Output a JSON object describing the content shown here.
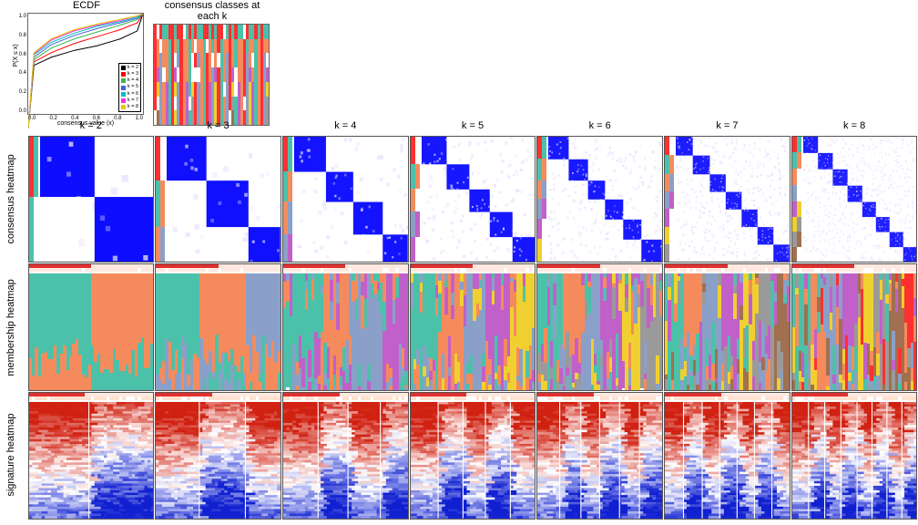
{
  "top": {
    "ecdf": {
      "title": "ECDF",
      "ylabel": "P(X ≤ x)",
      "xlabel": "consensus value (x)",
      "xticks": [
        "0.0",
        "0.2",
        "0.4",
        "0.6",
        "0.8",
        "1.0"
      ],
      "yticks": [
        "0.0",
        "0.2",
        "0.4",
        "0.6",
        "0.8",
        "1.0"
      ],
      "lines": [
        {
          "color": "#000000",
          "pts": [
            [
              0,
              0.0
            ],
            [
              0.05,
              0.55
            ],
            [
              0.2,
              0.62
            ],
            [
              0.4,
              0.68
            ],
            [
              0.6,
              0.72
            ],
            [
              0.8,
              0.78
            ],
            [
              0.95,
              0.85
            ],
            [
              1,
              1
            ]
          ]
        },
        {
          "color": "#ff0000",
          "pts": [
            [
              0,
              0.0
            ],
            [
              0.05,
              0.58
            ],
            [
              0.2,
              0.66
            ],
            [
              0.4,
              0.74
            ],
            [
              0.6,
              0.8
            ],
            [
              0.8,
              0.86
            ],
            [
              0.95,
              0.92
            ],
            [
              1,
              1
            ]
          ]
        },
        {
          "color": "#3cb44b",
          "pts": [
            [
              0,
              0.0
            ],
            [
              0.05,
              0.6
            ],
            [
              0.2,
              0.7
            ],
            [
              0.4,
              0.78
            ],
            [
              0.6,
              0.84
            ],
            [
              0.8,
              0.9
            ],
            [
              0.95,
              0.95
            ],
            [
              1,
              1
            ]
          ]
        },
        {
          "color": "#4363d8",
          "pts": [
            [
              0,
              0.0
            ],
            [
              0.05,
              0.62
            ],
            [
              0.2,
              0.73
            ],
            [
              0.4,
              0.81
            ],
            [
              0.6,
              0.87
            ],
            [
              0.8,
              0.92
            ],
            [
              0.95,
              0.96
            ],
            [
              1,
              1
            ]
          ]
        },
        {
          "color": "#00c0c0",
          "pts": [
            [
              0,
              0.0
            ],
            [
              0.05,
              0.64
            ],
            [
              0.2,
              0.75
            ],
            [
              0.4,
              0.83
            ],
            [
              0.6,
              0.89
            ],
            [
              0.8,
              0.93
            ],
            [
              0.95,
              0.97
            ],
            [
              1,
              1
            ]
          ]
        },
        {
          "color": "#f032e6",
          "pts": [
            [
              0,
              0.0
            ],
            [
              0.05,
              0.65
            ],
            [
              0.2,
              0.77
            ],
            [
              0.4,
              0.85
            ],
            [
              0.6,
              0.9
            ],
            [
              0.8,
              0.94
            ],
            [
              0.95,
              0.98
            ],
            [
              1,
              1
            ]
          ]
        },
        {
          "color": "#e6c700",
          "pts": [
            [
              0,
              0.0
            ],
            [
              0.05,
              0.66
            ],
            [
              0.2,
              0.78
            ],
            [
              0.4,
              0.86
            ],
            [
              0.6,
              0.91
            ],
            [
              0.8,
              0.95
            ],
            [
              0.95,
              0.98
            ],
            [
              1,
              1
            ]
          ]
        }
      ],
      "legend": [
        {
          "color": "#000000",
          "label": "k = 2"
        },
        {
          "color": "#ff0000",
          "label": "k = 3"
        },
        {
          "color": "#3cb44b",
          "label": "k = 4"
        },
        {
          "color": "#4363d8",
          "label": "k = 5"
        },
        {
          "color": "#00c0c0",
          "label": "k = 6"
        },
        {
          "color": "#f032e6",
          "label": "k = 7"
        },
        {
          "color": "#e6c700",
          "label": "k = 8"
        }
      ]
    },
    "cc": {
      "title": "consensus classes at each k",
      "palette_by_k": {
        "2": [
          "#ff3030",
          "#4cc1aa"
        ],
        "3": [
          "#ff3030",
          "#4cc1aa",
          "#f58b5c"
        ],
        "4": [
          "#ff3030",
          "#4cc1aa",
          "#f58b5c",
          "#8aa0c8"
        ],
        "5": [
          "#ff3030",
          "#4cc1aa",
          "#f58b5c",
          "#8aa0c8",
          "#c160c9"
        ],
        "6": [
          "#ff3030",
          "#4cc1aa",
          "#f58b5c",
          "#8aa0c8",
          "#c160c9",
          "#f0d030"
        ],
        "7": [
          "#ff3030",
          "#4cc1aa",
          "#f58b5c",
          "#8aa0c8",
          "#c160c9",
          "#f0d030",
          "#9a9a9a"
        ],
        "8": [
          "#ff3030",
          "#4cc1aa",
          "#f58b5c",
          "#8aa0c8",
          "#c160c9",
          "#f0d030",
          "#9a9a9a",
          "#a07050"
        ]
      },
      "rows_k": [
        2,
        3,
        4,
        5,
        6,
        7,
        8
      ],
      "n_samples": 40,
      "assignments": {
        "2": [
          0,
          1,
          0,
          1,
          1,
          0,
          0,
          1,
          0,
          0,
          1,
          1,
          0,
          1,
          0,
          1,
          1,
          0,
          0,
          1,
          0,
          1,
          0,
          0,
          1,
          1,
          0,
          1,
          0,
          1,
          1,
          0,
          0,
          1,
          1,
          0,
          1,
          0,
          1,
          1
        ],
        "3": [
          0,
          2,
          1,
          2,
          2,
          1,
          0,
          2,
          1,
          0,
          2,
          2,
          1,
          2,
          0,
          2,
          2,
          1,
          0,
          2,
          1,
          2,
          0,
          1,
          2,
          2,
          0,
          2,
          1,
          2,
          2,
          0,
          1,
          2,
          2,
          1,
          2,
          0,
          2,
          2
        ],
        "4": [
          0,
          2,
          3,
          2,
          2,
          1,
          0,
          2,
          3,
          0,
          2,
          2,
          1,
          2,
          0,
          3,
          2,
          1,
          0,
          2,
          3,
          2,
          0,
          1,
          2,
          3,
          0,
          2,
          1,
          2,
          2,
          0,
          3,
          2,
          2,
          1,
          2,
          0,
          3,
          2
        ],
        "5": [
          0,
          4,
          3,
          2,
          2,
          1,
          0,
          4,
          3,
          0,
          2,
          2,
          1,
          4,
          0,
          3,
          2,
          1,
          0,
          2,
          3,
          4,
          0,
          1,
          2,
          3,
          0,
          4,
          1,
          2,
          2,
          0,
          3,
          4,
          2,
          1,
          2,
          0,
          3,
          4
        ],
        "6": [
          0,
          5,
          3,
          2,
          4,
          1,
          0,
          5,
          3,
          0,
          2,
          4,
          1,
          5,
          0,
          3,
          2,
          1,
          0,
          4,
          3,
          5,
          0,
          1,
          2,
          3,
          0,
          5,
          1,
          4,
          2,
          0,
          3,
          5,
          4,
          1,
          2,
          0,
          3,
          5
        ],
        "7": [
          0,
          6,
          3,
          2,
          4,
          1,
          0,
          5,
          3,
          0,
          2,
          4,
          1,
          6,
          0,
          3,
          2,
          1,
          0,
          4,
          3,
          5,
          0,
          1,
          2,
          3,
          0,
          6,
          1,
          4,
          2,
          0,
          3,
          5,
          4,
          1,
          2,
          0,
          3,
          6
        ],
        "8": [
          0,
          7,
          3,
          2,
          4,
          1,
          0,
          5,
          3,
          0,
          2,
          4,
          1,
          6,
          0,
          3,
          2,
          1,
          0,
          4,
          3,
          5,
          0,
          1,
          2,
          3,
          0,
          7,
          1,
          4,
          2,
          0,
          3,
          5,
          4,
          1,
          2,
          0,
          3,
          6
        ]
      }
    }
  },
  "k_values": [
    2,
    3,
    4,
    5,
    6,
    7,
    8
  ],
  "row_labels": [
    "consensus heatmap",
    "membership heatmap",
    "signature heatmap"
  ],
  "consensus": {
    "block_edges": {
      "2": [
        0.0,
        0.48,
        1.0
      ],
      "3": [
        0.0,
        0.35,
        0.72,
        1.0
      ],
      "4": [
        0.0,
        0.28,
        0.52,
        0.78,
        1.0
      ],
      "5": [
        0.0,
        0.22,
        0.42,
        0.6,
        0.8,
        1.0
      ],
      "6": [
        0.0,
        0.18,
        0.35,
        0.5,
        0.66,
        0.82,
        1.0
      ],
      "7": [
        0.0,
        0.15,
        0.3,
        0.44,
        0.58,
        0.72,
        0.86,
        1.0
      ],
      "8": [
        0.0,
        0.13,
        0.26,
        0.39,
        0.52,
        0.64,
        0.76,
        0.88,
        1.0
      ]
    },
    "diag_color": "#0000ff",
    "off_color": "#e8e0ff",
    "bg": "#ffffff",
    "side_palette": [
      "#ff3030",
      "#4cc1aa",
      "#f58b5c",
      "#8aa0c8",
      "#c160c9",
      "#f0d030",
      "#9a9a9a",
      "#a07050"
    ]
  },
  "membership": {
    "palette": [
      "#4cc1aa",
      "#f58b5c",
      "#8aa0c8",
      "#c160c9",
      "#f0d030",
      "#9a9a9a",
      "#a07050",
      "#ff3030"
    ],
    "top_bar_color": "#e03030",
    "top_bar_fade": "#ffe8e0",
    "strip_h": 10
  },
  "signature": {
    "cold": "#1020d0",
    "mid": "#ffffff",
    "hot": "#d02010",
    "top_bar_color": "#e03030",
    "top_bar_fade": "#ffe8e0"
  },
  "seed": 4217
}
